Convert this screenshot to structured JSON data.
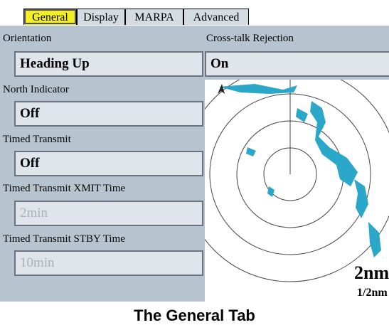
{
  "tabs": [
    "General",
    "Display",
    "MARPA",
    "Advanced"
  ],
  "fields": [
    {
      "label": "Orientation",
      "value": "Heading Up"
    },
    {
      "label": "North Indicator",
      "value": "Off"
    },
    {
      "label": "Timed Transmit",
      "value": "Off"
    },
    {
      "label": "Timed Transmit XMIT Time",
      "value": "2min"
    },
    {
      "label": "Timed Transmit STBY Time",
      "value": "10min"
    }
  ],
  "cross_talk": {
    "label": "Cross-talk Rejection",
    "value": "On"
  },
  "radar": {
    "range": "2nm",
    "ring_spacing": "1/2nm"
  },
  "caption": "The General Tab"
}
